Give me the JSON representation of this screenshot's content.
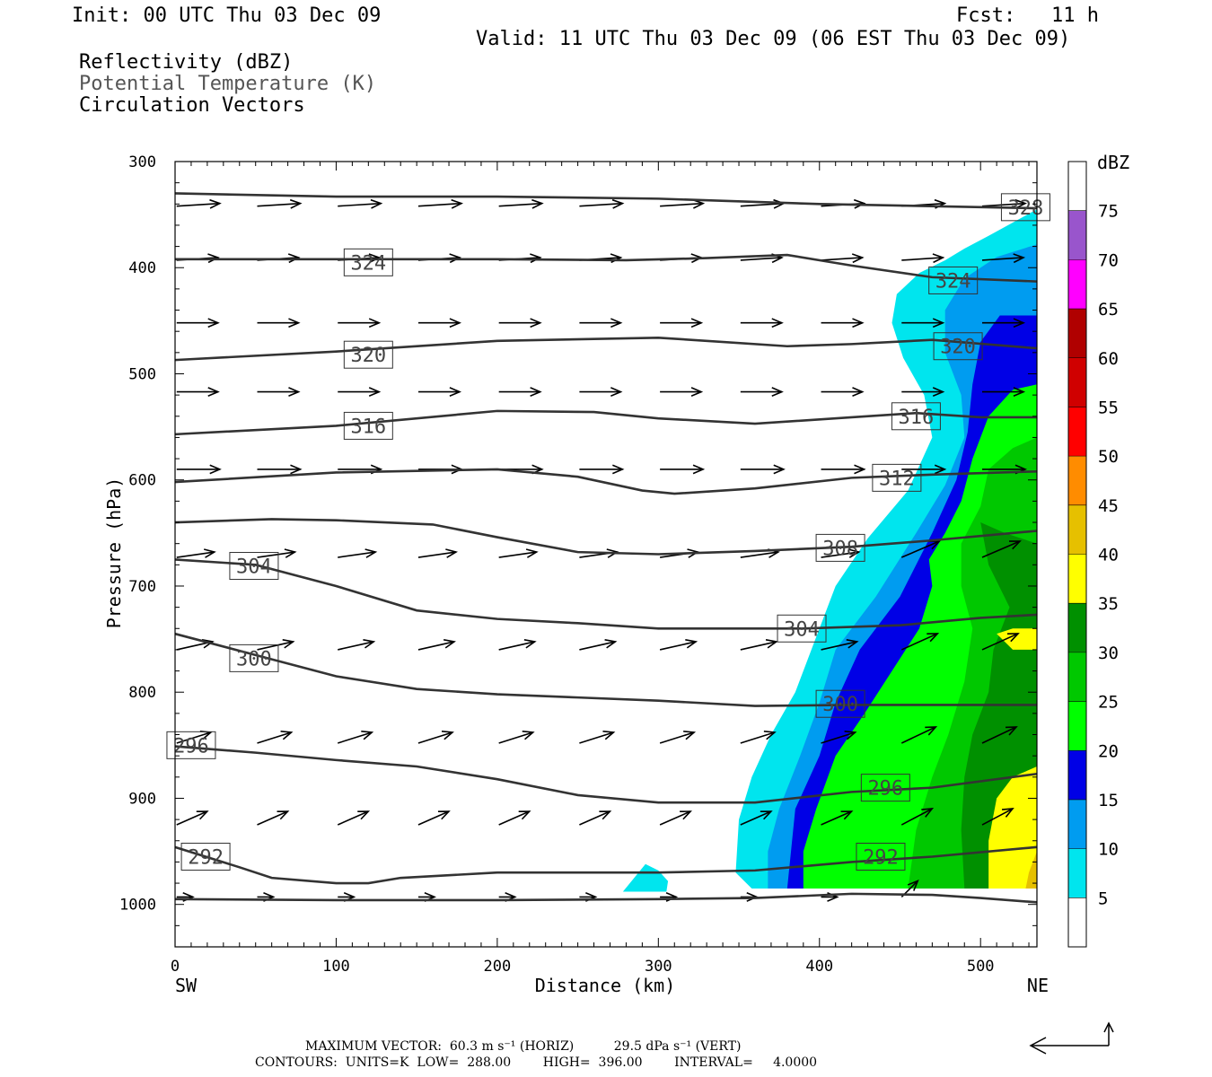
{
  "header": {
    "init": "Init: 00 UTC Thu 03 Dec 09",
    "fcst": "Fcst:   11 h",
    "valid": "Valid: 11 UTC Thu 03 Dec 09 (06 EST Thu 03 Dec 09)",
    "fields": [
      "Reflectivity (dBZ)",
      "Potential Temperature (K)",
      "Circulation Vectors"
    ]
  },
  "footer": {
    "max_vector": "MAXIMUM VECTOR:  60.3 m s⁻¹ (HORIZ)          29.5 dPa s⁻¹ (VERT)",
    "contours": "CONTOURS:  UNITS=K  LOW=  288.00        HIGH=  396.00        INTERVAL=     4.0000"
  },
  "chart_data": {
    "type": "cross-section",
    "xlabel": "Distance (km)",
    "ylabel": "Pressure (hPa)",
    "xlim": [
      0,
      535
    ],
    "ylim": [
      1040,
      300
    ],
    "xticks": [
      0,
      100,
      200,
      300,
      400,
      500
    ],
    "yticks": [
      300,
      400,
      500,
      600,
      700,
      800,
      900,
      1000
    ],
    "x_end_labels": {
      "left": "SW",
      "right": "NE"
    },
    "colorbar": {
      "units": "dBZ",
      "levels": [
        5,
        10,
        15,
        20,
        25,
        30,
        35,
        40,
        45,
        50,
        55,
        60,
        65,
        70,
        75
      ],
      "colors": [
        "#ffffff",
        "#00e5ee",
        "#009cf0",
        "#0000e6",
        "#00ff00",
        "#00c800",
        "#009000",
        "#ffff00",
        "#e6c000",
        "#ff8c00",
        "#ff0000",
        "#d00000",
        "#b00000",
        "#ff00ff",
        "#9955cc",
        "#ffffff"
      ]
    },
    "reflectivity": [
      {
        "dbz": 5,
        "color": "#00e5ee",
        "polygon": [
          [
            535,
            345
          ],
          [
            505,
            370
          ],
          [
            490,
            382
          ],
          [
            478,
            393
          ],
          [
            462,
            405
          ],
          [
            448,
            425
          ],
          [
            445,
            452
          ],
          [
            452,
            485
          ],
          [
            465,
            520
          ],
          [
            470,
            560
          ],
          [
            455,
            610
          ],
          [
            430,
            655
          ],
          [
            410,
            700
          ],
          [
            395,
            760
          ],
          [
            385,
            800
          ],
          [
            370,
            840
          ],
          [
            358,
            880
          ],
          [
            350,
            920
          ],
          [
            348,
            970
          ],
          [
            358,
            985
          ],
          [
            535,
            985
          ]
        ]
      },
      {
        "dbz": 5,
        "color": "#00e5ee",
        "polygon": [
          [
            278,
            988
          ],
          [
            285,
            975
          ],
          [
            292,
            962
          ],
          [
            300,
            968
          ],
          [
            306,
            978
          ],
          [
            305,
            988
          ]
        ]
      },
      {
        "dbz": 10,
        "color": "#009cf0",
        "polygon": [
          [
            535,
            378
          ],
          [
            510,
            390
          ],
          [
            490,
            410
          ],
          [
            478,
            440
          ],
          [
            478,
            480
          ],
          [
            488,
            520
          ],
          [
            490,
            560
          ],
          [
            478,
            605
          ],
          [
            460,
            650
          ],
          [
            435,
            710
          ],
          [
            410,
            760
          ],
          [
            400,
            810
          ],
          [
            388,
            860
          ],
          [
            375,
            910
          ],
          [
            368,
            950
          ],
          [
            368,
            985
          ],
          [
            535,
            985
          ]
        ]
      },
      {
        "dbz": 15,
        "color": "#0000e6",
        "polygon": [
          [
            535,
            445
          ],
          [
            512,
            445
          ],
          [
            500,
            470
          ],
          [
            495,
            510
          ],
          [
            492,
            555
          ],
          [
            485,
            600
          ],
          [
            470,
            650
          ],
          [
            450,
            710
          ],
          [
            425,
            760
          ],
          [
            410,
            810
          ],
          [
            400,
            860
          ],
          [
            385,
            910
          ],
          [
            380,
            985
          ],
          [
            535,
            985
          ]
        ]
      },
      {
        "dbz": 20,
        "color": "#00ff00",
        "polygon": [
          [
            535,
            510
          ],
          [
            520,
            515
          ],
          [
            505,
            540
          ],
          [
            495,
            580
          ],
          [
            488,
            620
          ],
          [
            478,
            650
          ],
          [
            468,
            675
          ],
          [
            470,
            700
          ],
          [
            462,
            740
          ],
          [
            445,
            780
          ],
          [
            428,
            820
          ],
          [
            410,
            860
          ],
          [
            398,
            910
          ],
          [
            390,
            950
          ],
          [
            390,
            985
          ],
          [
            535,
            985
          ]
        ]
      },
      {
        "dbz": 25,
        "color": "#00c800",
        "polygon": [
          [
            535,
            560
          ],
          [
            520,
            570
          ],
          [
            505,
            590
          ],
          [
            500,
            625
          ],
          [
            488,
            660
          ],
          [
            488,
            700
          ],
          [
            495,
            740
          ],
          [
            490,
            790
          ],
          [
            480,
            840
          ],
          [
            470,
            880
          ],
          [
            460,
            930
          ],
          [
            455,
            985
          ],
          [
            535,
            985
          ]
        ]
      },
      {
        "dbz": 30,
        "color": "#009000",
        "polygon": [
          [
            535,
            660
          ],
          [
            515,
            650
          ],
          [
            500,
            640
          ],
          [
            505,
            680
          ],
          [
            518,
            720
          ],
          [
            508,
            760
          ],
          [
            505,
            800
          ],
          [
            495,
            840
          ],
          [
            490,
            880
          ],
          [
            488,
            930
          ],
          [
            490,
            985
          ],
          [
            535,
            985
          ]
        ]
      },
      {
        "dbz": 35,
        "color": "#ffff00",
        "polygon": [
          [
            535,
            740
          ],
          [
            520,
            740
          ],
          [
            510,
            745
          ],
          [
            520,
            760
          ],
          [
            535,
            760
          ]
        ]
      },
      {
        "dbz": 35,
        "color": "#ffff00",
        "polygon": [
          [
            535,
            870
          ],
          [
            520,
            880
          ],
          [
            510,
            900
          ],
          [
            505,
            940
          ],
          [
            505,
            985
          ],
          [
            535,
            985
          ]
        ]
      },
      {
        "dbz": 40,
        "color": "#e6c000",
        "polygon": [
          [
            535,
            950
          ],
          [
            530,
            970
          ],
          [
            528,
            985
          ],
          [
            535,
            985
          ]
        ]
      }
    ],
    "theta_contours": [
      {
        "label": "328",
        "label_at": [
          528,
          343
        ],
        "points": [
          [
            0,
            330
          ],
          [
            100,
            333
          ],
          [
            200,
            333
          ],
          [
            300,
            335
          ],
          [
            400,
            340
          ],
          [
            535,
            344
          ]
        ]
      },
      {
        "label": "324",
        "label_at": [
          120,
          395
        ],
        "points": [
          [
            0,
            392
          ],
          [
            100,
            392
          ],
          [
            200,
            392
          ],
          [
            280,
            393
          ],
          [
            330,
            391
          ],
          [
            380,
            388
          ],
          [
            420,
            398
          ],
          [
            470,
            409
          ],
          [
            535,
            413
          ]
        ]
      },
      {
        "label": "324",
        "label_at": [
          483,
          412
        ],
        "points": []
      },
      {
        "label": "320",
        "label_at": [
          120,
          482
        ],
        "points": [
          [
            0,
            487
          ],
          [
            100,
            479
          ],
          [
            200,
            469
          ],
          [
            300,
            466
          ],
          [
            380,
            474
          ],
          [
            420,
            472
          ],
          [
            470,
            468
          ],
          [
            535,
            476
          ]
        ]
      },
      {
        "label": "320",
        "label_at": [
          486,
          474
        ],
        "points": []
      },
      {
        "label": "316",
        "label_at": [
          120,
          549
        ],
        "points": [
          [
            0,
            557
          ],
          [
            100,
            549
          ],
          [
            200,
            535
          ],
          [
            260,
            536
          ],
          [
            300,
            542
          ],
          [
            360,
            547
          ],
          [
            420,
            541
          ],
          [
            460,
            537
          ],
          [
            500,
            541
          ],
          [
            535,
            541
          ]
        ]
      },
      {
        "label": "316",
        "label_at": [
          460,
          540
        ],
        "points": []
      },
      {
        "label": "312",
        "label_at": [
          448,
          598
        ],
        "points": [
          [
            0,
            602
          ],
          [
            100,
            593
          ],
          [
            200,
            590
          ],
          [
            250,
            597
          ],
          [
            290,
            610
          ],
          [
            310,
            613
          ],
          [
            360,
            608
          ],
          [
            420,
            598
          ],
          [
            470,
            595
          ],
          [
            535,
            592
          ]
        ]
      },
      {
        "label": "308",
        "label_at": [
          413,
          664
        ],
        "points": [
          [
            0,
            640
          ],
          [
            60,
            637
          ],
          [
            100,
            638
          ],
          [
            160,
            642
          ],
          [
            200,
            654
          ],
          [
            250,
            668
          ],
          [
            300,
            670
          ],
          [
            360,
            667
          ],
          [
            420,
            663
          ],
          [
            470,
            657
          ],
          [
            535,
            648
          ]
        ]
      },
      {
        "label": "304",
        "label_at": [
          49,
          681
        ],
        "points": [
          [
            0,
            675
          ],
          [
            50,
            680
          ],
          [
            100,
            700
          ],
          [
            150,
            723
          ],
          [
            200,
            731
          ],
          [
            250,
            735
          ],
          [
            300,
            740
          ],
          [
            360,
            740
          ],
          [
            390,
            740
          ],
          [
            450,
            737
          ],
          [
            500,
            730
          ],
          [
            535,
            727
          ]
        ]
      },
      {
        "label": "304",
        "label_at": [
          389,
          740
        ],
        "points": []
      },
      {
        "label": "300",
        "label_at": [
          49,
          768
        ],
        "points": [
          [
            0,
            745
          ],
          [
            50,
            765
          ],
          [
            100,
            785
          ],
          [
            150,
            797
          ],
          [
            200,
            802
          ],
          [
            250,
            805
          ],
          [
            300,
            808
          ],
          [
            360,
            813
          ],
          [
            420,
            812
          ],
          [
            470,
            812
          ],
          [
            535,
            812
          ]
        ]
      },
      {
        "label": "300",
        "label_at": [
          413,
          811
        ],
        "points": []
      },
      {
        "label": "296",
        "label_at": [
          10,
          850
        ],
        "points": [
          [
            0,
            851
          ],
          [
            50,
            857
          ],
          [
            100,
            864
          ],
          [
            150,
            870
          ],
          [
            200,
            882
          ],
          [
            250,
            897
          ],
          [
            300,
            904
          ],
          [
            360,
            904
          ],
          [
            420,
            894
          ],
          [
            470,
            890
          ],
          [
            535,
            877
          ]
        ]
      },
      {
        "label": "296",
        "label_at": [
          441,
          890
        ],
        "points": []
      },
      {
        "label": "292",
        "label_at": [
          19,
          955
        ],
        "points": [
          [
            0,
            946
          ],
          [
            40,
            965
          ],
          [
            60,
            975
          ],
          [
            100,
            980
          ],
          [
            120,
            980
          ],
          [
            140,
            975
          ],
          [
            200,
            970
          ],
          [
            300,
            970
          ],
          [
            360,
            968
          ],
          [
            420,
            960
          ],
          [
            470,
            955
          ],
          [
            535,
            946
          ]
        ]
      },
      {
        "label": "292",
        "label_at": [
          438,
          955
        ],
        "points": []
      },
      {
        "label": "",
        "label_at": null,
        "points": [
          [
            0,
            995
          ],
          [
            100,
            996
          ],
          [
            200,
            996
          ],
          [
            300,
            995
          ],
          [
            360,
            994
          ],
          [
            420,
            990
          ],
          [
            470,
            991
          ],
          [
            500,
            994
          ],
          [
            535,
            998
          ]
        ]
      }
    ]
  }
}
